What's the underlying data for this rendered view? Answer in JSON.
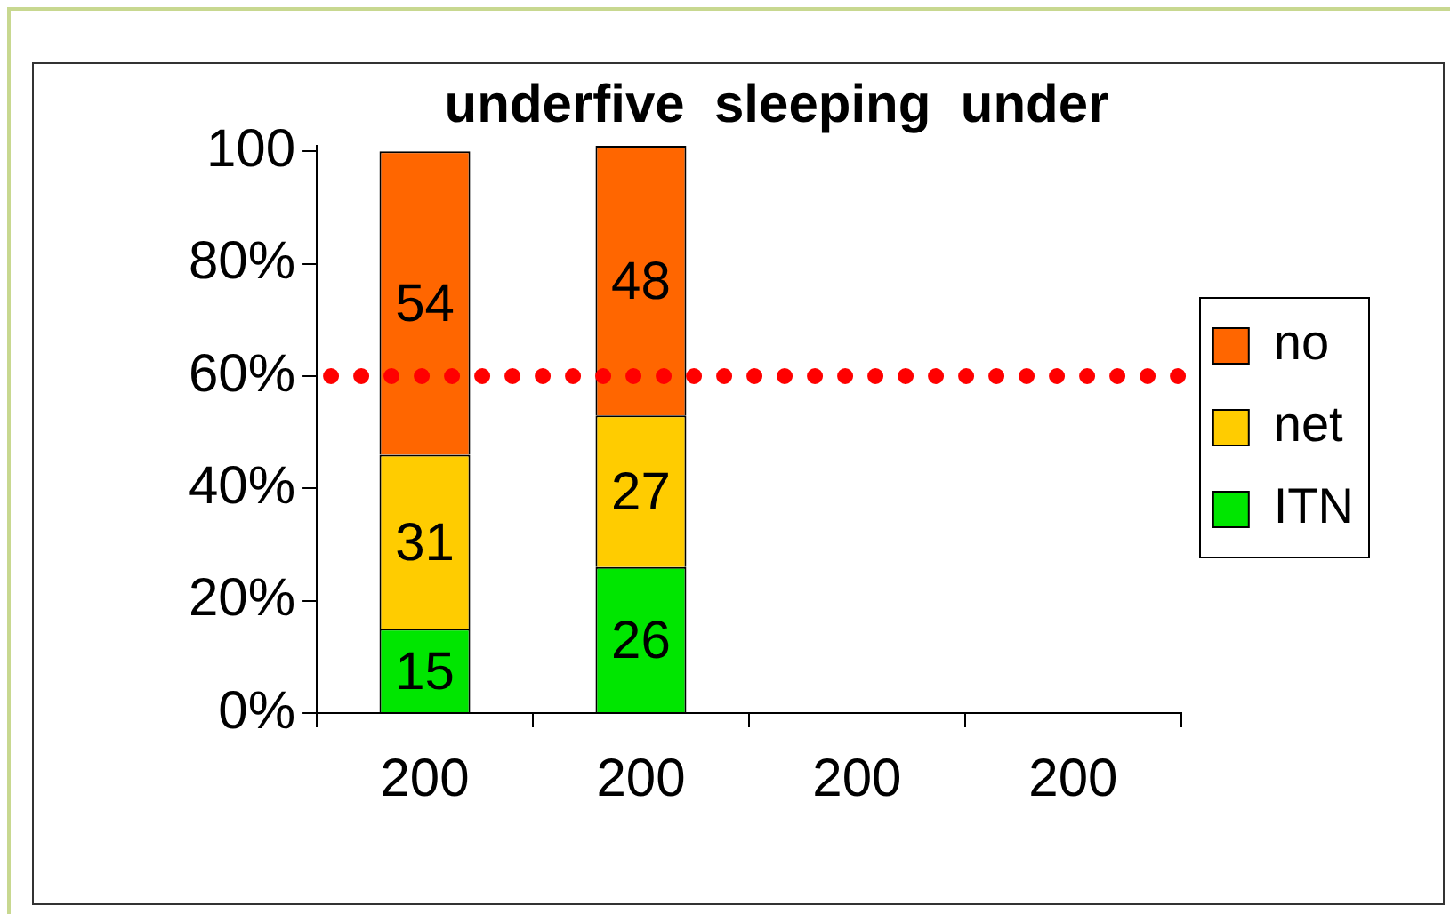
{
  "chart_data": {
    "type": "bar",
    "title": "underfive  sleeping  under",
    "categories": [
      "200",
      "200",
      "200",
      "200"
    ],
    "series": [
      {
        "name": "ITN",
        "color": "#00e600",
        "values": [
          15,
          26,
          null,
          null
        ]
      },
      {
        "name": "net",
        "color": "#ffcc00",
        "values": [
          31,
          27,
          null,
          null
        ]
      },
      {
        "name": "no",
        "color": "#ff6600",
        "values": [
          54,
          48,
          null,
          null
        ]
      }
    ],
    "stacked": true,
    "data_labels": true,
    "legend": "right",
    "ylim": [
      0,
      101
    ],
    "yticks": [
      {
        "value": 0,
        "label": "0%"
      },
      {
        "value": 20,
        "label": "20%"
      },
      {
        "value": 40,
        "label": "40%"
      },
      {
        "value": 60,
        "label": "60%"
      },
      {
        "value": 80,
        "label": "80%"
      },
      {
        "value": 100,
        "label": "100"
      }
    ],
    "ref_lines": [
      {
        "axis": "y",
        "value": 60,
        "color": "#ff0000",
        "line_style": "dotted"
      }
    ]
  }
}
